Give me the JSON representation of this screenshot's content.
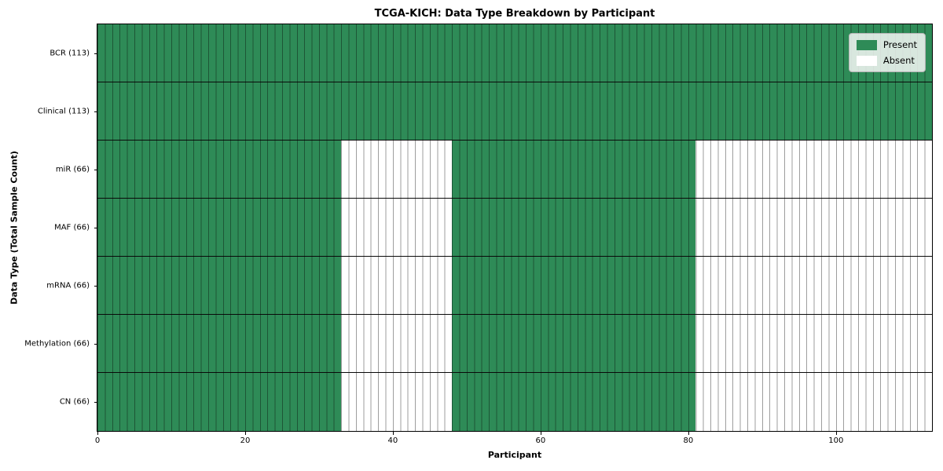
{
  "chart_data": {
    "type": "heatmap",
    "title": "TCGA-KICH: Data Type Breakdown by Participant",
    "xlabel": "Participant",
    "ylabel": "Data Type (Total Sample Count)",
    "x_range": [
      0,
      113
    ],
    "n_participants": 113,
    "x_ticks": [
      0,
      20,
      40,
      60,
      80,
      100
    ],
    "grid": "per-cell vertical lines and per-row horizontal separators",
    "colors": {
      "present": "#2e8b57",
      "absent": "#ffffff",
      "cell_line": "rgba(0,0,0,0.38)",
      "row_line": "#0a0a0a"
    },
    "legend": {
      "position": "upper right",
      "entries": [
        {
          "label": "Present",
          "state": "present"
        },
        {
          "label": "Absent",
          "state": "absent"
        }
      ]
    },
    "rows": [
      {
        "label": "BCR (113)",
        "data_type": "bcr",
        "total_samples": 113,
        "segments": [
          {
            "start": 0,
            "end": 113,
            "state": "present"
          }
        ]
      },
      {
        "label": "Clinical (113)",
        "data_type": "clinical",
        "total_samples": 113,
        "segments": [
          {
            "start": 0,
            "end": 113,
            "state": "present"
          }
        ]
      },
      {
        "label": "miR (66)",
        "data_type": "mir",
        "total_samples": 66,
        "segments": [
          {
            "start": 0,
            "end": 33,
            "state": "present"
          },
          {
            "start": 33,
            "end": 48,
            "state": "absent"
          },
          {
            "start": 48,
            "end": 81,
            "state": "present"
          },
          {
            "start": 81,
            "end": 113,
            "state": "absent"
          }
        ]
      },
      {
        "label": "MAF (66)",
        "data_type": "maf",
        "total_samples": 66,
        "segments": [
          {
            "start": 0,
            "end": 33,
            "state": "present"
          },
          {
            "start": 33,
            "end": 48,
            "state": "absent"
          },
          {
            "start": 48,
            "end": 81,
            "state": "present"
          },
          {
            "start": 81,
            "end": 113,
            "state": "absent"
          }
        ]
      },
      {
        "label": "mRNA (66)",
        "data_type": "mrna",
        "total_samples": 66,
        "segments": [
          {
            "start": 0,
            "end": 33,
            "state": "present"
          },
          {
            "start": 33,
            "end": 48,
            "state": "absent"
          },
          {
            "start": 48,
            "end": 81,
            "state": "present"
          },
          {
            "start": 81,
            "end": 113,
            "state": "absent"
          }
        ]
      },
      {
        "label": "Methylation (66)",
        "data_type": "methylation",
        "total_samples": 66,
        "segments": [
          {
            "start": 0,
            "end": 33,
            "state": "present"
          },
          {
            "start": 33,
            "end": 48,
            "state": "absent"
          },
          {
            "start": 48,
            "end": 81,
            "state": "present"
          },
          {
            "start": 81,
            "end": 113,
            "state": "absent"
          }
        ]
      },
      {
        "label": "CN (66)",
        "data_type": "cn",
        "total_samples": 66,
        "segments": [
          {
            "start": 0,
            "end": 33,
            "state": "present"
          },
          {
            "start": 33,
            "end": 48,
            "state": "absent"
          },
          {
            "start": 48,
            "end": 81,
            "state": "present"
          },
          {
            "start": 81,
            "end": 113,
            "state": "absent"
          }
        ]
      }
    ]
  }
}
